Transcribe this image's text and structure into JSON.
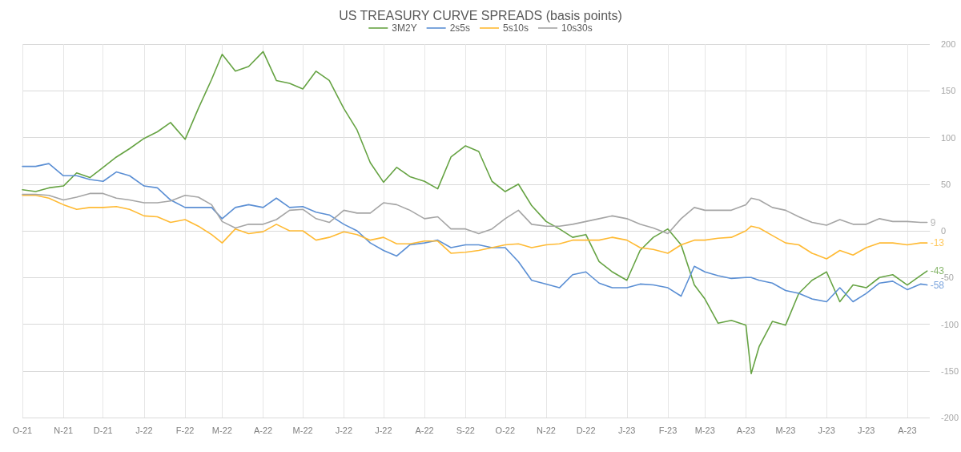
{
  "chart_data": {
    "type": "line",
    "title": "US TREASURY CURVE SPREADS (basis points)",
    "x": [
      "2021-10-01",
      "2021-10-11",
      "2021-10-21",
      "2021-11-01",
      "2021-11-11",
      "2021-11-21",
      "2021-12-01",
      "2021-12-11",
      "2021-12-21",
      "2022-01-01",
      "2022-01-11",
      "2022-01-21",
      "2022-02-01",
      "2022-02-11",
      "2022-02-21",
      "2022-03-01",
      "2022-03-11",
      "2022-03-21",
      "2022-04-01",
      "2022-04-11",
      "2022-04-21",
      "2022-05-01",
      "2022-05-11",
      "2022-05-21",
      "2022-06-01",
      "2022-06-11",
      "2022-06-21",
      "2022-07-01",
      "2022-07-11",
      "2022-07-21",
      "2022-08-01",
      "2022-08-11",
      "2022-08-21",
      "2022-09-01",
      "2022-09-11",
      "2022-09-21",
      "2022-10-01",
      "2022-10-11",
      "2022-10-21",
      "2022-11-01",
      "2022-11-11",
      "2022-11-21",
      "2022-12-01",
      "2022-12-11",
      "2022-12-21",
      "2023-01-01",
      "2023-01-11",
      "2023-01-21",
      "2023-02-01",
      "2023-02-11",
      "2023-02-21",
      "2023-03-01",
      "2023-03-11",
      "2023-03-21",
      "2023-04-01",
      "2023-04-05",
      "2023-04-11",
      "2023-04-21",
      "2023-05-01",
      "2023-05-11",
      "2023-05-21",
      "2023-06-01",
      "2023-06-11",
      "2023-06-21",
      "2023-07-01",
      "2023-07-11",
      "2023-07-21",
      "2023-08-01",
      "2023-08-11",
      "2023-08-16"
    ],
    "series": [
      {
        "name": "3M2Y",
        "color": "#66a343",
        "values": [
          44,
          42,
          46,
          48,
          62,
          57,
          68,
          79,
          88,
          99,
          106,
          116,
          98,
          131,
          162,
          189,
          171,
          176,
          192,
          161,
          158,
          152,
          171,
          161,
          131,
          108,
          73,
          52,
          68,
          58,
          53,
          45,
          79,
          91,
          85,
          53,
          42,
          50,
          27,
          10,
          2,
          -7,
          -4,
          -33,
          -44,
          -53,
          -21,
          -7,
          2,
          -15,
          -58,
          -73,
          -99,
          -96,
          -101,
          -153,
          -124,
          -97,
          -101,
          -67,
          -53,
          -44,
          -76,
          -58,
          -61,
          -50,
          -47,
          -58,
          -48,
          -43
        ]
      },
      {
        "name": "2s5s",
        "color": "#5b8fd4",
        "values": [
          69,
          69,
          72,
          59,
          59,
          55,
          53,
          63,
          59,
          48,
          46,
          33,
          25,
          25,
          25,
          13,
          25,
          28,
          25,
          35,
          25,
          26,
          20,
          17,
          7,
          0,
          -13,
          -21,
          -27,
          -15,
          -13,
          -10,
          -18,
          -15,
          -15,
          -18,
          -18,
          -33,
          -53,
          -57,
          -61,
          -47,
          -44,
          -56,
          -61,
          -61,
          -57,
          -58,
          -61,
          -70,
          -38,
          -44,
          -48,
          -51,
          -50,
          -50,
          -53,
          -56,
          -64,
          -67,
          -73,
          -76,
          -61,
          -76,
          -67,
          -56,
          -54,
          -63,
          -57,
          -58
        ]
      },
      {
        "name": "5s10s",
        "color": "#ffba33",
        "values": [
          38,
          38,
          35,
          28,
          23,
          25,
          25,
          26,
          23,
          16,
          15,
          9,
          12,
          5,
          -4,
          -13,
          2,
          -3,
          -1,
          7,
          0,
          0,
          -10,
          -7,
          -1,
          -4,
          -10,
          -7,
          -14,
          -14,
          -11,
          -11,
          -24,
          -23,
          -21,
          -18,
          -15,
          -14,
          -18,
          -15,
          -14,
          -10,
          -10,
          -10,
          -7,
          -10,
          -18,
          -20,
          -24,
          -15,
          -10,
          -10,
          -8,
          -7,
          0,
          5,
          3,
          -5,
          -13,
          -15,
          -24,
          -30,
          -21,
          -26,
          -18,
          -13,
          -13,
          -15,
          -13,
          -13
        ]
      },
      {
        "name": "10s30s",
        "color": "#a5a5a5",
        "values": [
          39,
          39,
          38,
          33,
          36,
          40,
          40,
          35,
          33,
          30,
          30,
          32,
          38,
          36,
          28,
          10,
          3,
          7,
          7,
          12,
          22,
          23,
          13,
          9,
          22,
          19,
          19,
          30,
          28,
          22,
          13,
          15,
          2,
          2,
          -3,
          2,
          13,
          22,
          7,
          5,
          5,
          7,
          10,
          13,
          16,
          13,
          7,
          3,
          -3,
          13,
          25,
          22,
          22,
          22,
          28,
          35,
          33,
          25,
          22,
          15,
          9,
          6,
          12,
          7,
          7,
          13,
          10,
          10,
          9,
          9
        ]
      }
    ],
    "xlim": [
      "2021-10-01",
      "2023-08-18"
    ],
    "xticks": [
      {
        "value": "2021-10-01",
        "label": "O-21"
      },
      {
        "value": "2021-11-01",
        "label": "N-21"
      },
      {
        "value": "2021-12-01",
        "label": "D-21"
      },
      {
        "value": "2022-01-01",
        "label": "J-22"
      },
      {
        "value": "2022-02-01",
        "label": "F-22"
      },
      {
        "value": "2022-03-01",
        "label": "M-22"
      },
      {
        "value": "2022-04-01",
        "label": "A-22"
      },
      {
        "value": "2022-05-01",
        "label": "M-22"
      },
      {
        "value": "2022-06-01",
        "label": "J-22"
      },
      {
        "value": "2022-07-01",
        "label": "J-22"
      },
      {
        "value": "2022-08-01",
        "label": "A-22"
      },
      {
        "value": "2022-09-01",
        "label": "S-22"
      },
      {
        "value": "2022-10-01",
        "label": "O-22"
      },
      {
        "value": "2022-11-01",
        "label": "N-22"
      },
      {
        "value": "2022-12-01",
        "label": "D-22"
      },
      {
        "value": "2023-01-01",
        "label": "J-23"
      },
      {
        "value": "2023-02-01",
        "label": "F-23"
      },
      {
        "value": "2023-03-01",
        "label": "M-23"
      },
      {
        "value": "2023-04-01",
        "label": "A-23"
      },
      {
        "value": "2023-05-01",
        "label": "M-23"
      },
      {
        "value": "2023-06-01",
        "label": "J-23"
      },
      {
        "value": "2023-07-01",
        "label": "J-23"
      },
      {
        "value": "2023-08-01",
        "label": "A-23"
      }
    ],
    "ylim": [
      -200,
      200
    ],
    "yticks": [
      -200,
      -150,
      -100,
      -50,
      0,
      50,
      100,
      150,
      200
    ],
    "annotations": [
      {
        "text": "9",
        "x": "2023-08-16",
        "y": 9
      },
      {
        "text": "-13",
        "x": "2023-08-16",
        "y": -13
      },
      {
        "text": "-43",
        "x": "2023-08-16",
        "y": -43
      },
      {
        "text": "-58",
        "x": "2023-08-16",
        "y": -58
      }
    ],
    "grid": true,
    "legend": "top",
    "marker": "none"
  }
}
